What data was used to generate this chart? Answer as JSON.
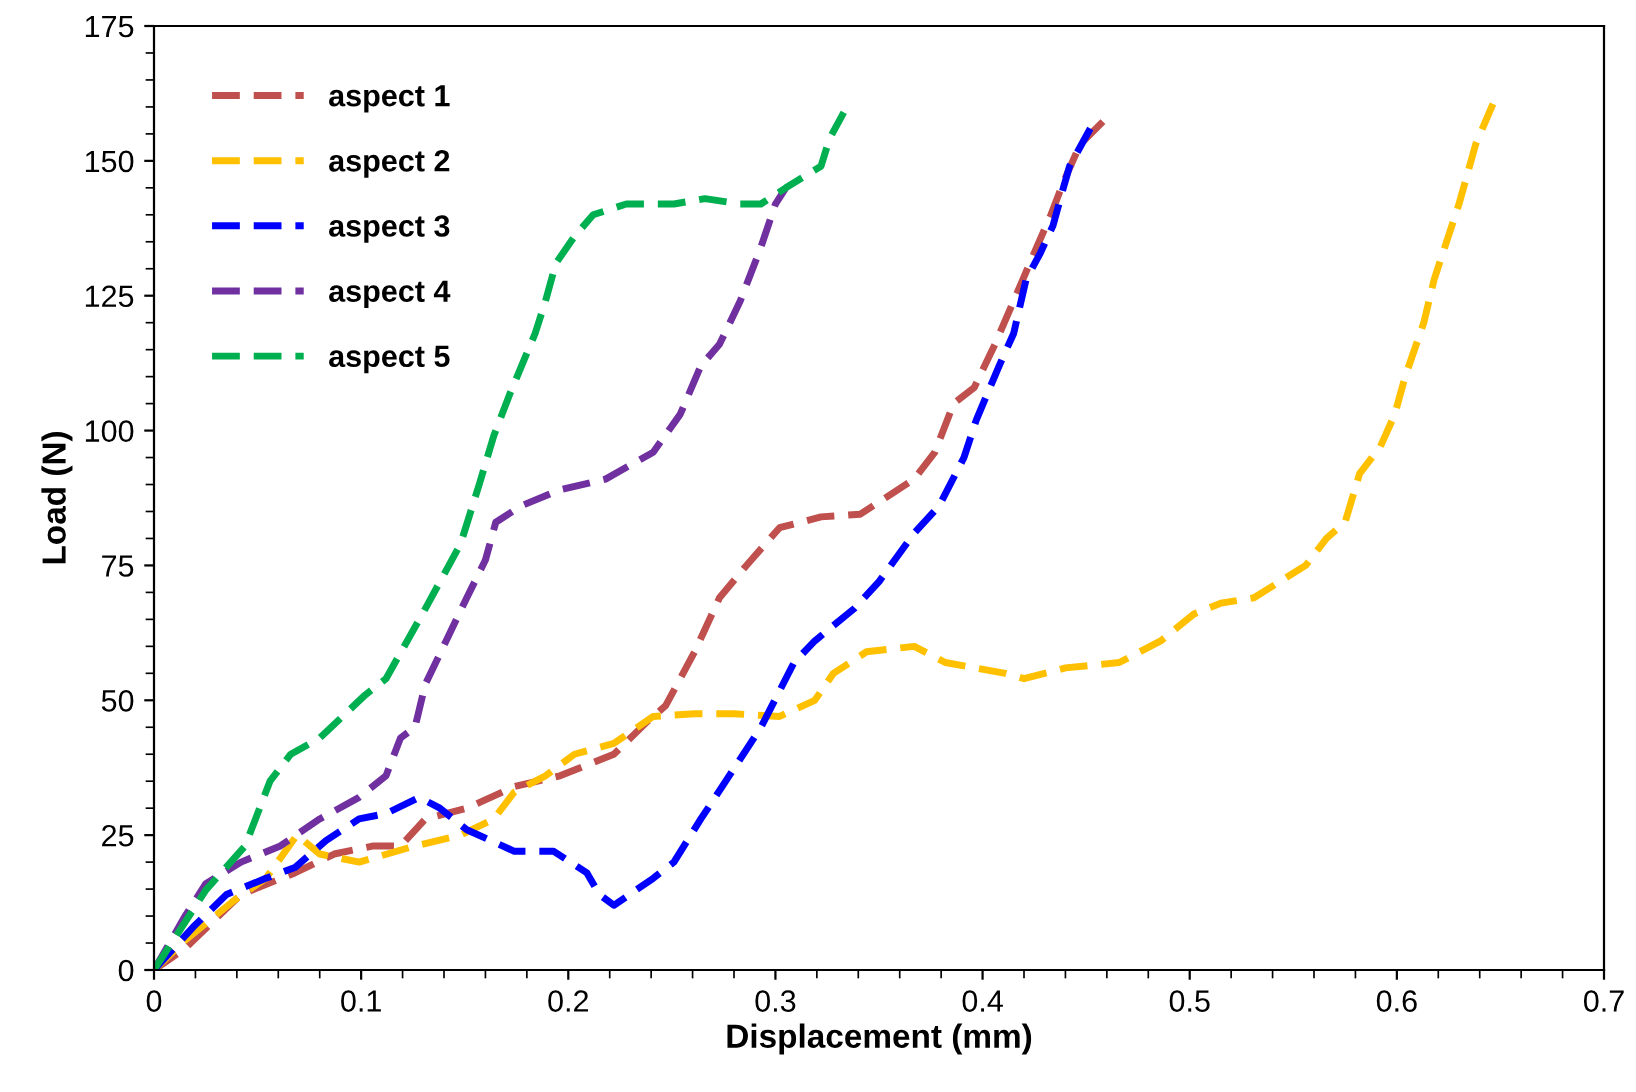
{
  "chart_data": {
    "type": "line",
    "xlabel": "Displacement (mm)",
    "ylabel": "Load (N)",
    "xlim": [
      0,
      0.7
    ],
    "xticks": [
      0,
      0.1,
      0.2,
      0.3,
      0.4,
      0.5,
      0.6,
      0.7
    ],
    "ylim": [
      0,
      175
    ],
    "yticks": [
      0,
      25,
      50,
      75,
      100,
      125,
      150,
      175
    ],
    "grid": false,
    "legend": "top left",
    "marker": "none",
    "line_style": "dashed",
    "series": [
      {
        "name": "aspect 1",
        "color": "#c0504d",
        "x": [
          0,
          0.015,
          0.042,
          0.068,
          0.087,
          0.106,
          0.119,
          0.131,
          0.151,
          0.174,
          0.196,
          0.222,
          0.238,
          0.247,
          0.261,
          0.273,
          0.286,
          0.302,
          0.322,
          0.341,
          0.367,
          0.377,
          0.386,
          0.396,
          0.406,
          0.415,
          0.425,
          0.433,
          0.439,
          0.447,
          0.46
        ],
        "values": [
          0,
          4,
          14,
          18,
          21.5,
          23,
          23,
          28,
          30,
          34,
          36,
          40,
          46,
          49,
          59,
          69,
          75,
          82,
          84,
          84.5,
          91,
          96,
          105,
          108,
          116,
          124,
          133,
          140,
          146,
          153,
          158
        ]
      },
      {
        "name": "aspect 2",
        "color": "#ffc000",
        "x": [
          0,
          0.015,
          0.039,
          0.054,
          0.069,
          0.08,
          0.099,
          0.126,
          0.148,
          0.164,
          0.174,
          0.189,
          0.203,
          0.222,
          0.241,
          0.261,
          0.28,
          0.302,
          0.319,
          0.328,
          0.344,
          0.367,
          0.382,
          0.411,
          0.42,
          0.44,
          0.466,
          0.486,
          0.502,
          0.515,
          0.531,
          0.556,
          0.566,
          0.575,
          0.582,
          0.592,
          0.599,
          0.604,
          0.613,
          0.618,
          0.624,
          0.63,
          0.638,
          0.648
        ],
        "values": [
          0,
          5.5,
          13,
          17,
          25,
          21.5,
          20,
          23,
          25,
          28,
          33,
          36,
          40,
          42,
          47,
          47.5,
          47.5,
          47,
          50,
          55,
          59,
          60,
          57,
          55,
          54,
          56,
          57,
          61,
          66,
          68,
          69,
          75,
          80,
          83,
          92,
          97,
          103,
          110,
          120,
          128,
          135,
          142,
          153,
          162
        ]
      },
      {
        "name": "aspect 3",
        "color": "#0000ff",
        "x": [
          0,
          0.019,
          0.035,
          0.054,
          0.068,
          0.083,
          0.099,
          0.112,
          0.128,
          0.138,
          0.151,
          0.174,
          0.193,
          0.209,
          0.215,
          0.222,
          0.241,
          0.251,
          0.264,
          0.276,
          0.293,
          0.309,
          0.319,
          0.338,
          0.35,
          0.367,
          0.379,
          0.391,
          0.397,
          0.408,
          0.415,
          0.421,
          0.428,
          0.434,
          0.439,
          0.442,
          0.452
        ],
        "values": [
          0,
          8,
          14,
          17,
          19,
          24,
          28,
          29,
          32,
          30,
          26,
          22,
          22,
          18,
          14,
          12,
          17,
          20,
          28,
          35,
          45,
          57,
          61,
          67,
          72,
          81,
          86,
          95,
          102,
          112,
          118,
          128,
          133,
          138,
          145,
          149,
          156
        ]
      },
      {
        "name": "aspect 4",
        "color": "#7030a0",
        "x": [
          0,
          0.015,
          0.025,
          0.042,
          0.061,
          0.08,
          0.099,
          0.112,
          0.119,
          0.126,
          0.131,
          0.141,
          0.151,
          0.16,
          0.165,
          0.177,
          0.196,
          0.218,
          0.241,
          0.254,
          0.264,
          0.273,
          0.283,
          0.293,
          0.3,
          0.305
        ],
        "values": [
          0,
          10,
          16,
          20,
          23,
          28,
          32,
          36,
          43,
          45,
          53,
          61,
          69,
          76,
          83,
          86,
          89,
          91,
          96,
          103,
          112,
          116,
          124,
          134,
          142,
          145
        ]
      },
      {
        "name": "aspect 5",
        "color": "#00b050",
        "x": [
          0,
          0.025,
          0.044,
          0.056,
          0.066,
          0.08,
          0.102,
          0.112,
          0.131,
          0.148,
          0.157,
          0.164,
          0.172,
          0.184,
          0.189,
          0.194,
          0.203,
          0.212,
          0.228,
          0.251,
          0.266,
          0.283,
          0.293,
          0.305,
          0.322,
          0.326,
          0.333
        ],
        "values": [
          0,
          14.8,
          23,
          35,
          40,
          43,
          51,
          54,
          67,
          79,
          90,
          99,
          107,
          118,
          124,
          131,
          136,
          140,
          142,
          142,
          143,
          142,
          142,
          145,
          149,
          154,
          159
        ]
      }
    ]
  }
}
